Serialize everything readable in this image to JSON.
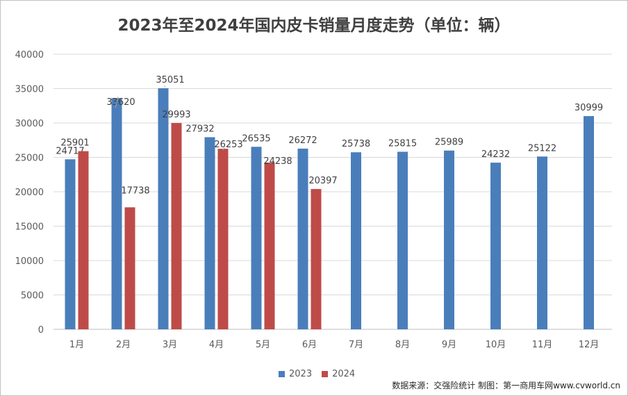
{
  "chart_data": {
    "type": "bar",
    "title": "2023年至2024年国内皮卡销量月度走势（单位：辆）",
    "categories": [
      "1月",
      "2月",
      "3月",
      "4月",
      "5月",
      "6月",
      "7月",
      "8月",
      "9月",
      "10月",
      "11月",
      "12月"
    ],
    "series": [
      {
        "name": "2023",
        "color": "#4a7ebb",
        "values": [
          24717,
          33620,
          35051,
          27932,
          26535,
          26272,
          25738,
          25815,
          25989,
          24232,
          25122,
          30999
        ]
      },
      {
        "name": "2024",
        "color": "#be4b48",
        "values": [
          25901,
          17738,
          29993,
          26253,
          24238,
          20397,
          null,
          null,
          null,
          null,
          null,
          null
        ]
      }
    ],
    "ylim": [
      0,
      40000
    ],
    "yticks": [
      0,
      5000,
      10000,
      15000,
      20000,
      25000,
      30000,
      35000,
      40000
    ],
    "grid": true,
    "legend_position": "bottom"
  },
  "source_note": "数据来源：交强险统计 制图：第一商用车网www.cvworld.cn"
}
